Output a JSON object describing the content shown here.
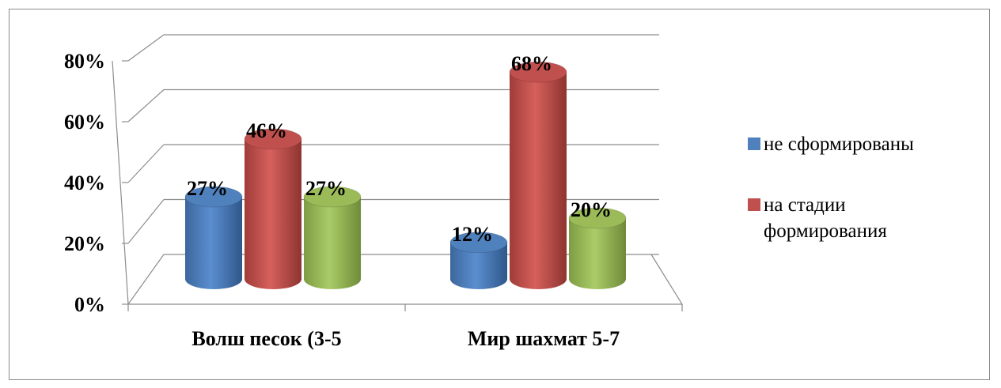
{
  "chart_data": {
    "type": "bar",
    "title": "",
    "xlabel": "",
    "ylabel": "",
    "categories": [
      "Волш песок (3-5",
      "Мир шахмат 5-7"
    ],
    "series": [
      {
        "name": "не сформированы",
        "values": [
          27,
          12
        ],
        "labels": [
          "27%",
          "12%"
        ],
        "color": "#4f81bd"
      },
      {
        "name": "на стадии формирования",
        "legend_lines": [
          "на стадии",
          "формирования"
        ],
        "values": [
          46,
          68
        ],
        "labels": [
          "46%",
          "68%"
        ],
        "color": "#c0504d"
      },
      {
        "name": "",
        "values": [
          27,
          20
        ],
        "labels": [
          "27%",
          "20%"
        ],
        "color": "#9bbb59"
      }
    ],
    "yticks": [
      "0%",
      "20%",
      "40%",
      "60%",
      "80%"
    ],
    "ylim": [
      0,
      80
    ],
    "grid": true,
    "legend_position": "right"
  }
}
